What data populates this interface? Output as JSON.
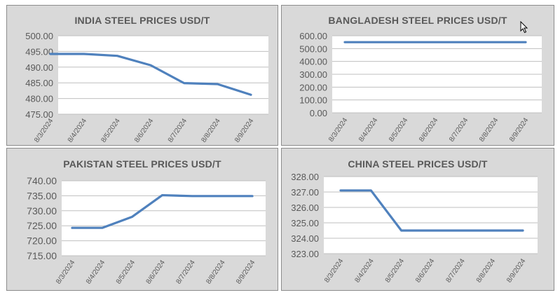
{
  "chart_data": [
    {
      "type": "line",
      "title": "INDIA STEEL PRICES USD/T",
      "categories": [
        "8/3/2024",
        "8/4/2024",
        "8/5/2024",
        "8/6/2024",
        "8/7/2024",
        "8/8/2024",
        "8/9/2024"
      ],
      "values": [
        494.2,
        494.2,
        493.6,
        490.6,
        484.9,
        484.6,
        481.2
      ],
      "ylim": [
        475,
        500
      ],
      "yticks": [
        "475.00",
        "480.00",
        "485.00",
        "490.00",
        "495.00",
        "500.00"
      ],
      "grid": true,
      "line_color": "#4f81bd"
    },
    {
      "type": "line",
      "title": "BANGLADESH STEEL PRICES USD/T",
      "categories": [
        "8/3/2024",
        "8/4/2024",
        "8/5/2024",
        "8/6/2024",
        "8/7/2024",
        "8/8/2024",
        "8/9/2024"
      ],
      "values": [
        550,
        550,
        550,
        550,
        550,
        550,
        550
      ],
      "ylim": [
        0,
        600
      ],
      "yticks": [
        "0.00",
        "100.00",
        "200.00",
        "300.00",
        "400.00",
        "500.00",
        "600.00"
      ],
      "grid": true,
      "line_color": "#4f81bd"
    },
    {
      "type": "line",
      "title": "PAKISTAN STEEL PRICES USD/T",
      "categories": [
        "8/3/2024",
        "8/4/2024",
        "8/5/2024",
        "8/6/2024",
        "8/7/2024",
        "8/8/2024",
        "8/9/2024"
      ],
      "values": [
        724.3,
        724.3,
        728.0,
        735.2,
        734.9,
        734.9,
        734.9
      ],
      "ylim": [
        715,
        740
      ],
      "yticks": [
        "715.00",
        "720.00",
        "725.00",
        "730.00",
        "735.00",
        "740.00"
      ],
      "grid": true,
      "line_color": "#4f81bd"
    },
    {
      "type": "line",
      "title": "CHINA STEEL PRICES USD/T",
      "categories": [
        "8/3/2024",
        "8/4/2024",
        "8/5/2024",
        "8/6/2024",
        "8/7/2024",
        "8/8/2024",
        "8/9/2024"
      ],
      "values": [
        327.1,
        327.1,
        324.5,
        324.5,
        324.5,
        324.5,
        324.5
      ],
      "ylim": [
        323,
        328
      ],
      "yticks": [
        "323.00",
        "324.00",
        "325.00",
        "326.00",
        "327.00",
        "328.00"
      ],
      "grid": true,
      "line_color": "#4f81bd"
    }
  ],
  "icons": {
    "cursor": "mouse-pointer-icon"
  }
}
